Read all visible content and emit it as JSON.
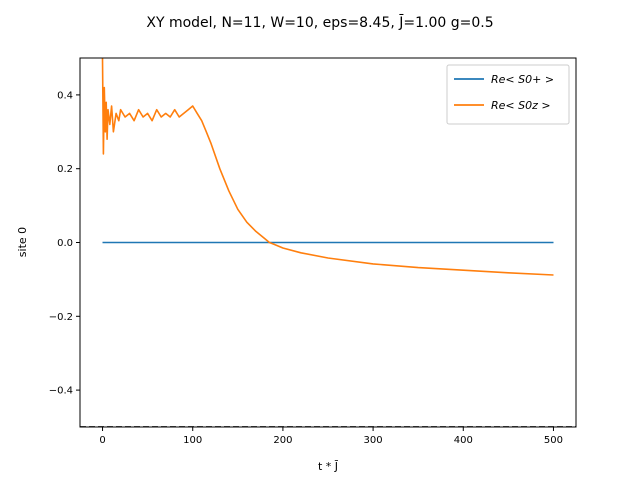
{
  "chart_data": {
    "type": "line",
    "title": "XY model, N=11, W=10,  eps=8.45,  J̄=1.00  g=0.5",
    "xlabel": "t * J̄",
    "ylabel": "site 0",
    "xlim": [
      -25,
      525
    ],
    "ylim": [
      -0.5,
      0.5
    ],
    "xticks": [
      0,
      100,
      200,
      300,
      400,
      500
    ],
    "yticks": [
      -0.4,
      -0.2,
      0.0,
      0.2,
      0.4
    ],
    "xtick_labels": [
      "0",
      "100",
      "200",
      "300",
      "400",
      "500"
    ],
    "ytick_labels": [
      "−0.4",
      "−0.2",
      "0.0",
      "0.2",
      "0.4"
    ],
    "grid": false,
    "legend_position": "top-right",
    "reference_line": {
      "y": -0.5,
      "style": "dashed"
    },
    "series": [
      {
        "name": "Re< S0+ >",
        "color": "#1f77b4",
        "x": [
          0,
          100,
          200,
          300,
          400,
          500
        ],
        "y": [
          0,
          0,
          0,
          0,
          0,
          0
        ]
      },
      {
        "name": "Re< S0z >",
        "color": "#ff7f0e",
        "x": [
          0,
          1,
          2,
          3,
          4,
          5,
          6,
          8,
          10,
          12,
          15,
          18,
          20,
          25,
          30,
          35,
          40,
          45,
          50,
          55,
          60,
          65,
          70,
          75,
          80,
          85,
          90,
          95,
          100,
          105,
          110,
          115,
          120,
          130,
          140,
          150,
          160,
          170,
          180,
          185,
          190,
          200,
          220,
          250,
          300,
          350,
          400,
          450,
          500
        ],
        "y": [
          0.5,
          0.24,
          0.42,
          0.3,
          0.38,
          0.28,
          0.36,
          0.32,
          0.37,
          0.3,
          0.35,
          0.33,
          0.36,
          0.34,
          0.35,
          0.33,
          0.36,
          0.34,
          0.35,
          0.33,
          0.36,
          0.34,
          0.35,
          0.34,
          0.36,
          0.34,
          0.35,
          0.36,
          0.37,
          0.35,
          0.33,
          0.3,
          0.27,
          0.2,
          0.14,
          0.09,
          0.055,
          0.03,
          0.01,
          0.0,
          -0.005,
          -0.015,
          -0.028,
          -0.042,
          -0.058,
          -0.068,
          -0.075,
          -0.082,
          -0.088
        ]
      }
    ]
  }
}
